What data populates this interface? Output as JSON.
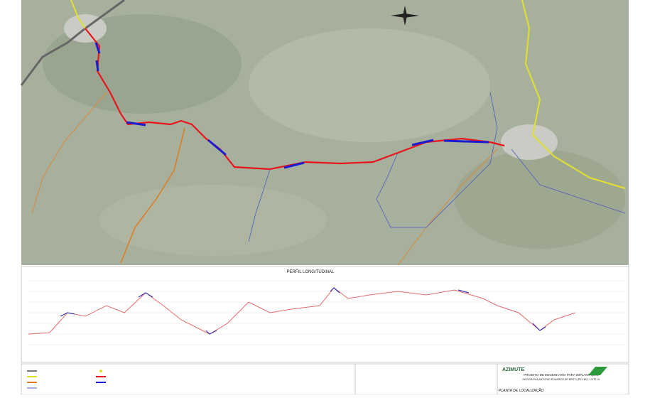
{
  "profile": {
    "title": "PERFIL LONGITUDINAL"
  },
  "title_block": {
    "company": "AZIMUTE",
    "project_line1": "PROJETO DE ENGENHARIA PARA IMPLANTAÇÃO",
    "project_line2": "DA RODOVIA ANTONIO EDUARDO DE BRITO (PE-160) - LOTE 01",
    "sheet": "PLANTA DE LOCALIZAÇÃO"
  }
}
